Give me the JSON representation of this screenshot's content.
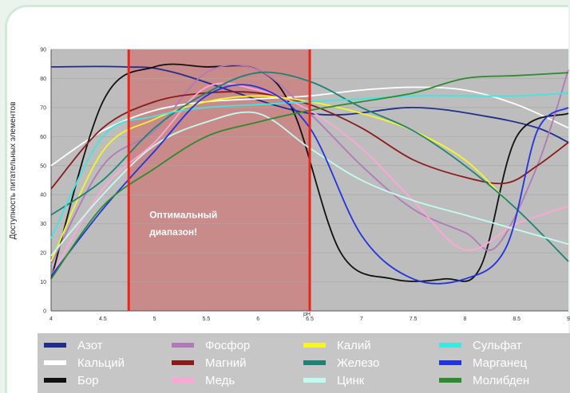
{
  "chart_data": {
    "type": "line",
    "title": "",
    "xlabel": "pH",
    "ylabel": "Доступность питательных элементов",
    "xlim": [
      4,
      9
    ],
    "ylim": [
      0,
      90
    ],
    "x_ticks": [
      "4",
      "4.5",
      "5",
      "5.5",
      "6",
      "6.5",
      "7",
      "7.5",
      "8",
      "8.5",
      "9"
    ],
    "y_ticks": [
      "0",
      "10",
      "20",
      "30",
      "40",
      "50",
      "60",
      "70",
      "80",
      "90"
    ],
    "grid": true,
    "legend_position": "bottom",
    "optimal_range": {
      "x": [
        4.75,
        6.5
      ],
      "label_line1": "Оптимальный",
      "label_line2": "диапазон!"
    },
    "series": [
      {
        "name": "Азот",
        "color": "#1f2e8a",
        "x": [
          4,
          4.7,
          5.2,
          6.5,
          7.5,
          8.2,
          8.7,
          9
        ],
        "y": [
          84,
          84,
          82,
          68,
          70,
          67,
          63,
          58
        ]
      },
      {
        "name": "Кальций",
        "color": "#ffffff",
        "x": [
          4,
          4.5,
          5,
          5.5,
          6,
          6.5,
          7,
          7.5,
          8,
          8.5,
          9
        ],
        "y": [
          50,
          62,
          69,
          72,
          73,
          74,
          76,
          77,
          76,
          71,
          63
        ]
      },
      {
        "name": "Бор",
        "color": "#111111",
        "x": [
          4,
          4.5,
          5,
          5.5,
          6,
          6.35,
          6.8,
          7.3,
          7.8,
          8.15,
          8.5,
          9
        ],
        "y": [
          11,
          72,
          84,
          84,
          83,
          68,
          20,
          11,
          11,
          15,
          60,
          68
        ]
      },
      {
        "name": "Фосфор",
        "color": "#b07ab8",
        "x": [
          4,
          4.5,
          5,
          5.5,
          6,
          6.5,
          7,
          7.5,
          8,
          8.3,
          8.7,
          9
        ],
        "y": [
          16,
          50,
          62,
          82,
          83,
          68,
          50,
          35,
          27,
          22,
          50,
          83
        ]
      },
      {
        "name": "Магний",
        "color": "#8b1a1a",
        "x": [
          4,
          4.5,
          5,
          5.5,
          6,
          6.5,
          7,
          7.5,
          8,
          8.4,
          8.7,
          9
        ],
        "y": [
          42,
          63,
          72,
          75,
          75,
          71,
          63,
          52,
          46,
          44,
          50,
          58
        ]
      },
      {
        "name": "Медь",
        "color": "#ffa6d6",
        "x": [
          4,
          4.5,
          5,
          5.5,
          6,
          6.5,
          7,
          7.5,
          8,
          8.5,
          9
        ],
        "y": [
          12,
          42,
          58,
          77,
          76,
          69,
          56,
          38,
          21,
          30,
          36
        ]
      },
      {
        "name": "Калий",
        "color": "#f5f52a",
        "x": [
          4,
          4.5,
          5,
          5.5,
          6,
          6.5,
          7,
          7.5,
          8,
          8.4
        ],
        "y": [
          17,
          55,
          66,
          72,
          74,
          72,
          68,
          62,
          52,
          38
        ]
      },
      {
        "name": "Железо",
        "color": "#1d8273",
        "x": [
          4,
          4.5,
          5,
          5.5,
          6,
          6.5,
          7,
          7.5,
          8,
          8.5,
          9
        ],
        "y": [
          33,
          45,
          63,
          75,
          82,
          79,
          70,
          62,
          50,
          35,
          17
        ]
      },
      {
        "name": "Цинк",
        "color": "#c4fbf0",
        "x": [
          4,
          4.5,
          5,
          5.5,
          6,
          6.5,
          7,
          7.5,
          8,
          8.5,
          9
        ],
        "y": [
          19,
          40,
          57,
          65,
          68,
          56,
          45,
          38,
          33,
          28,
          23
        ]
      },
      {
        "name": "Сульфат",
        "color": "#3ee7e2",
        "x": [
          4,
          4.5,
          5,
          5.5,
          6,
          6.5,
          7,
          7.5,
          8,
          8.5,
          9
        ],
        "y": [
          25,
          60,
          67,
          70,
          71,
          72,
          73,
          74,
          74,
          74,
          75
        ]
      },
      {
        "name": "Марганец",
        "color": "#2233dd",
        "x": [
          4,
          4.5,
          5,
          5.5,
          6,
          6.5,
          7,
          7.5,
          8,
          8.4,
          8.7,
          9
        ],
        "y": [
          12,
          35,
          55,
          74,
          77,
          63,
          26,
          11,
          11,
          22,
          62,
          70
        ]
      },
      {
        "name": "Молибден",
        "color": "#2e8b2e",
        "x": [
          4,
          4.5,
          5,
          5.5,
          6,
          6.5,
          7,
          7.5,
          8,
          8.5,
          9
        ],
        "y": [
          11,
          36,
          49,
          60,
          65,
          69,
          72,
          75,
          80,
          81,
          82
        ]
      }
    ]
  }
}
